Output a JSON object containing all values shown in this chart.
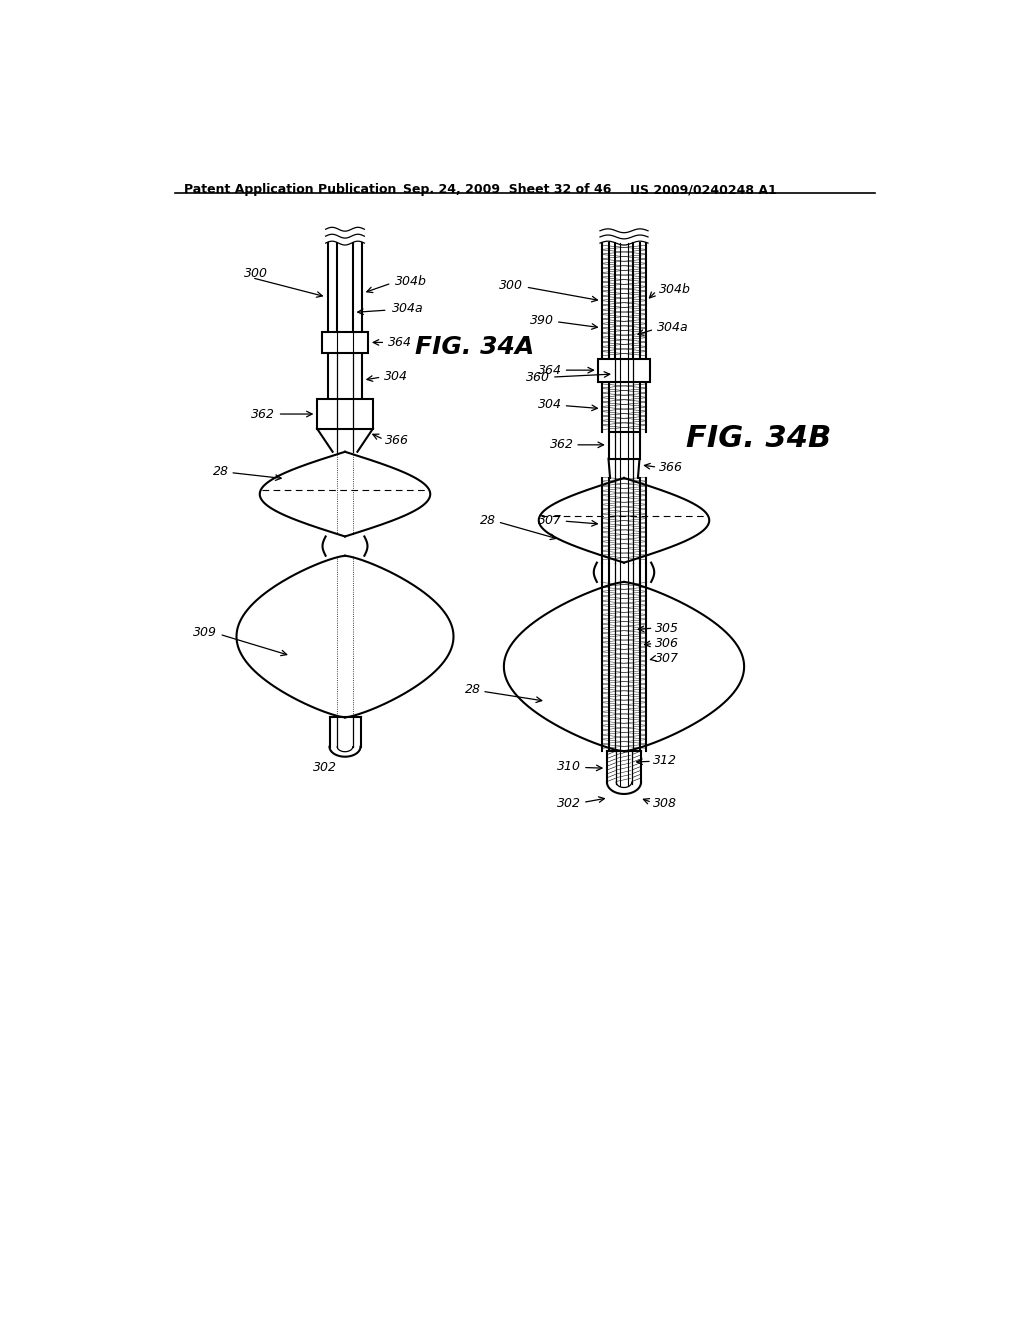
{
  "title_left": "Patent Application Publication",
  "title_mid": "Sep. 24, 2009  Sheet 32 of 46",
  "title_right": "US 2009/0240248 A1",
  "fig_label_A": "FIG. 34A",
  "fig_label_B": "FIG. 34B",
  "background_color": "#ffffff",
  "line_color": "#000000"
}
